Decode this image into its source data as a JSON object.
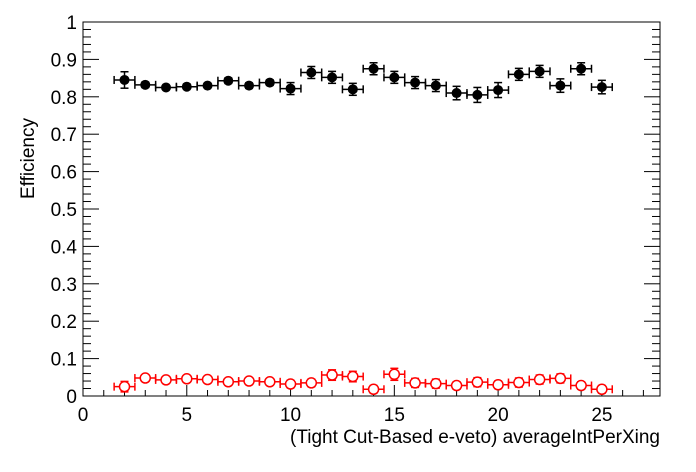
{
  "chart_data": {
    "type": "scatter",
    "title": "",
    "xlabel": "(Tight Cut-Based e-veto) averageIntPerXing",
    "ylabel": "Efficiency",
    "xlim": [
      0,
      27.8
    ],
    "ylim": [
      0,
      1
    ],
    "x_ticks": [
      "0",
      "5",
      "10",
      "15",
      "20",
      "25"
    ],
    "y_ticks": [
      "0",
      "0.1",
      "0.2",
      "0.3",
      "0.4",
      "0.5",
      "0.6",
      "0.7",
      "0.8",
      "0.9",
      "1"
    ],
    "grid": false,
    "x_error": 0.5,
    "series": [
      {
        "marker": "filled-circle",
        "color": "#000000",
        "x": [
          2,
          3,
          4,
          5,
          6,
          7,
          8,
          9,
          10,
          11,
          12,
          13,
          14,
          15,
          16,
          17,
          18,
          19,
          20,
          21,
          22,
          23,
          24,
          25
        ],
        "y": [
          0.845,
          0.832,
          0.825,
          0.827,
          0.83,
          0.843,
          0.83,
          0.838,
          0.822,
          0.865,
          0.852,
          0.82,
          0.875,
          0.852,
          0.838,
          0.83,
          0.81,
          0.805,
          0.818,
          0.86,
          0.868,
          0.83,
          0.875,
          0.826
        ],
        "yerr": [
          0.022,
          0.007,
          0.006,
          0.006,
          0.006,
          0.007,
          0.007,
          0.007,
          0.016,
          0.016,
          0.016,
          0.016,
          0.016,
          0.016,
          0.016,
          0.016,
          0.018,
          0.02,
          0.02,
          0.016,
          0.016,
          0.018,
          0.016,
          0.018
        ]
      },
      {
        "marker": "open-circle",
        "color": "#ff0000",
        "x": [
          2,
          3,
          4,
          5,
          6,
          7,
          8,
          9,
          10,
          11,
          12,
          13,
          14,
          15,
          16,
          17,
          18,
          19,
          20,
          21,
          22,
          23,
          24,
          25
        ],
        "y": [
          0.025,
          0.048,
          0.043,
          0.046,
          0.044,
          0.038,
          0.04,
          0.038,
          0.032,
          0.035,
          0.056,
          0.052,
          0.018,
          0.058,
          0.035,
          0.033,
          0.028,
          0.037,
          0.03,
          0.036,
          0.044,
          0.047,
          0.028,
          0.018
        ],
        "yerr": [
          0.014,
          0.006,
          0.005,
          0.005,
          0.005,
          0.005,
          0.005,
          0.005,
          0.01,
          0.01,
          0.014,
          0.014,
          0.01,
          0.016,
          0.012,
          0.012,
          0.01,
          0.012,
          0.01,
          0.012,
          0.012,
          0.012,
          0.01,
          0.01
        ]
      }
    ]
  }
}
